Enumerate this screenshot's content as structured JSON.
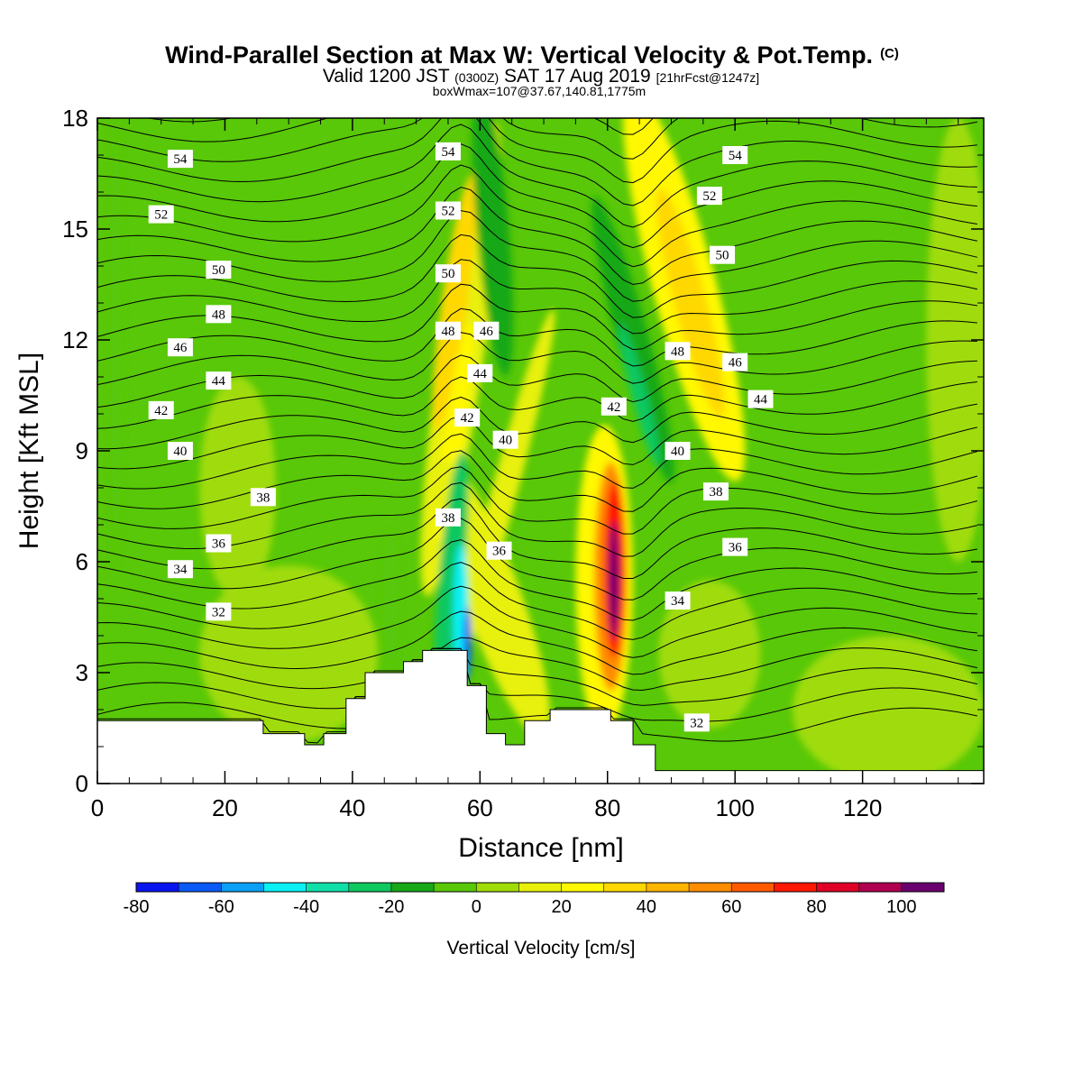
{
  "chart_data": {
    "type": "heatmap",
    "title": "Wind-Parallel Section at Max W: Vertical Velocity & Pot.Temp.",
    "title_mark": "(C)",
    "subtitle_parts": {
      "a": "Valid 1200 JST",
      "b": "(0300Z)",
      "c": "SAT 17 Aug 2019",
      "d": "[21hrFcst@1247z]"
    },
    "subtitle2": "boxWmax=107@37.67,140.81,1775m",
    "xlabel": "Distance [nm]",
    "ylabel": "Height [Kft MSL]",
    "xlim": [
      0,
      139
    ],
    "ylim": [
      0,
      18
    ],
    "xticks": [
      "0",
      "20",
      "40",
      "60",
      "80",
      "100",
      "120"
    ],
    "xtick_values": [
      0,
      20,
      40,
      60,
      80,
      100,
      120
    ],
    "yticks": [
      "0",
      "3",
      "6",
      "9",
      "12",
      "15",
      "18"
    ],
    "ytick_values": [
      0,
      3,
      6,
      9,
      12,
      15,
      18
    ],
    "colorbar": {
      "label": "Vertical Velocity [cm/s]",
      "ticks": [
        "-80",
        "-60",
        "-40",
        "-20",
        "0",
        "20",
        "40",
        "60",
        "80",
        "100"
      ],
      "tick_values": [
        -80,
        -60,
        -40,
        -20,
        0,
        20,
        40,
        60,
        80,
        100
      ],
      "range": [
        -80,
        110
      ],
      "colors": [
        "#0a14f0",
        "#0a5af5",
        "#0aa0f5",
        "#0af0f5",
        "#10e0a8",
        "#10c860",
        "#18a818",
        "#58c808",
        "#a0dc08",
        "#e8f00a",
        "#fff800",
        "#ffd800",
        "#ffb400",
        "#ff8c00",
        "#ff5a00",
        "#ff1800",
        "#e00028",
        "#b00050",
        "#6a006e"
      ]
    },
    "terrain_kft": [
      [
        0,
        1.7
      ],
      [
        26,
        1.7
      ],
      [
        26,
        1.35
      ],
      [
        32.5,
        1.35
      ],
      [
        32.5,
        1.05
      ],
      [
        35.5,
        1.05
      ],
      [
        35.5,
        1.35
      ],
      [
        39,
        1.35
      ],
      [
        39,
        2.3
      ],
      [
        42,
        2.3
      ],
      [
        42,
        3.0
      ],
      [
        48,
        3.0
      ],
      [
        48,
        3.3
      ],
      [
        51,
        3.3
      ],
      [
        51,
        3.6
      ],
      [
        55,
        3.6
      ],
      [
        58,
        3.6
      ],
      [
        58,
        2.65
      ],
      [
        61,
        2.65
      ],
      [
        61,
        1.35
      ],
      [
        64,
        1.35
      ],
      [
        64,
        1.05
      ],
      [
        67,
        1.05
      ],
      [
        67,
        1.7
      ],
      [
        71,
        1.7
      ],
      [
        71,
        2.0
      ],
      [
        77,
        2.0
      ],
      [
        80.5,
        2.0
      ],
      [
        80.5,
        1.7
      ],
      [
        84,
        1.7
      ],
      [
        84,
        1.05
      ],
      [
        87.5,
        1.05
      ],
      [
        87.5,
        0.35
      ],
      [
        139,
        0.35
      ]
    ],
    "theta_levels": [
      "32",
      "34",
      "36",
      "38",
      "40",
      "42",
      "44",
      "46",
      "48",
      "50",
      "52",
      "54"
    ],
    "theta_labels": [
      {
        "text": "54",
        "x": 13,
        "y": 16.9
      },
      {
        "text": "52",
        "x": 10,
        "y": 15.4
      },
      {
        "text": "50",
        "x": 19,
        "y": 13.9
      },
      {
        "text": "48",
        "x": 19,
        "y": 12.7
      },
      {
        "text": "46",
        "x": 13,
        "y": 11.8
      },
      {
        "text": "44",
        "x": 19,
        "y": 10.9
      },
      {
        "text": "42",
        "x": 10,
        "y": 10.1
      },
      {
        "text": "40",
        "x": 13,
        "y": 9.0
      },
      {
        "text": "38",
        "x": 26,
        "y": 7.75
      },
      {
        "text": "36",
        "x": 19,
        "y": 6.5
      },
      {
        "text": "34",
        "x": 13,
        "y": 5.8
      },
      {
        "text": "32",
        "x": 19,
        "y": 4.65
      },
      {
        "text": "54",
        "x": 55,
        "y": 17.1
      },
      {
        "text": "52",
        "x": 55,
        "y": 15.5
      },
      {
        "text": "50",
        "x": 55,
        "y": 13.8
      },
      {
        "text": "48",
        "x": 55,
        "y": 12.25
      },
      {
        "text": "46",
        "x": 61,
        "y": 12.25
      },
      {
        "text": "44",
        "x": 60,
        "y": 11.1
      },
      {
        "text": "42",
        "x": 58,
        "y": 9.9
      },
      {
        "text": "40",
        "x": 64,
        "y": 9.3
      },
      {
        "text": "38",
        "x": 55,
        "y": 7.2
      },
      {
        "text": "36",
        "x": 63,
        "y": 6.3
      },
      {
        "text": "42",
        "x": 81,
        "y": 10.2
      },
      {
        "text": "48",
        "x": 91,
        "y": 11.7
      },
      {
        "text": "46",
        "x": 100,
        "y": 11.4
      },
      {
        "text": "44",
        "x": 104,
        "y": 10.4
      },
      {
        "text": "40",
        "x": 91,
        "y": 9.0
      },
      {
        "text": "38",
        "x": 97,
        "y": 7.9
      },
      {
        "text": "36",
        "x": 100,
        "y": 6.4
      },
      {
        "text": "34",
        "x": 91,
        "y": 4.95
      },
      {
        "text": "32",
        "x": 94,
        "y": 1.65
      },
      {
        "text": "54",
        "x": 100,
        "y": 17.0
      },
      {
        "text": "52",
        "x": 96,
        "y": 15.9
      },
      {
        "text": "50",
        "x": 98,
        "y": 14.3
      }
    ],
    "w_features": [
      {
        "cx": 57,
        "cy": 11.5,
        "rx": 3.5,
        "ry": 6.5,
        "rot": 8,
        "v": 18
      },
      {
        "cx": 56,
        "cy": 13,
        "rx": 2.0,
        "ry": 3.5,
        "rot": 8,
        "v": 32
      },
      {
        "cx": 56,
        "cy": 9.5,
        "rx": 1.6,
        "ry": 3,
        "rot": 8,
        "v": 28
      },
      {
        "cx": 62,
        "cy": 5,
        "rx": 4.5,
        "ry": 4,
        "rot": -20,
        "v": 18
      },
      {
        "cx": 64,
        "cy": 8,
        "rx": 2,
        "ry": 5,
        "rot": 15,
        "v": 15
      },
      {
        "cx": 92,
        "cy": 13.5,
        "rx": 5,
        "ry": 5.5,
        "rot": -15,
        "v": 20
      },
      {
        "cx": 93,
        "cy": 13,
        "rx": 2.5,
        "ry": 3.2,
        "rot": -15,
        "v": 32
      },
      {
        "cx": 79.5,
        "cy": 5.5,
        "rx": 4.5,
        "ry": 4.2,
        "rot": 0,
        "v": 25
      },
      {
        "cx": 80.5,
        "cy": 5.6,
        "rx": 2.6,
        "ry": 3.1,
        "rot": 0,
        "v": 50
      },
      {
        "cx": 81,
        "cy": 5.8,
        "rx": 1.6,
        "ry": 2.4,
        "rot": 0,
        "v": 75
      },
      {
        "cx": 81,
        "cy": 5.5,
        "rx": 0.8,
        "ry": 1.6,
        "rot": 0,
        "v": 105
      },
      {
        "cx": 55.5,
        "cy": 5.5,
        "rx": 2.0,
        "ry": 3.5,
        "rot": 5,
        "v": -30
      },
      {
        "cx": 57,
        "cy": 4.5,
        "rx": 1.2,
        "ry": 2.0,
        "rot": 0,
        "v": -45
      },
      {
        "cx": 58,
        "cy": 3.8,
        "rx": 0.6,
        "ry": 1.0,
        "rot": 0,
        "v": -65
      },
      {
        "cx": 62,
        "cy": 15,
        "rx": 2.5,
        "ry": 4,
        "rot": -5,
        "v": -15
      },
      {
        "cx": 84,
        "cy": 12,
        "rx": 2.5,
        "ry": 4,
        "rot": -15,
        "v": -15
      },
      {
        "cx": 85,
        "cy": 10.5,
        "rx": 1.2,
        "ry": 2,
        "rot": -15,
        "v": -25
      },
      {
        "cx": 3,
        "cy": 12,
        "rx": 0.8,
        "ry": 6,
        "rot": 0,
        "v": -10
      },
      {
        "cx": 46,
        "cy": 5,
        "rx": 1.2,
        "ry": 1.8,
        "rot": 0,
        "v": -10
      },
      {
        "cx": 30,
        "cy": 3.5,
        "rx": 14,
        "ry": 2.4,
        "rot": 0,
        "v": 2
      },
      {
        "cx": 124,
        "cy": 2,
        "rx": 15,
        "ry": 2,
        "rot": 0,
        "v": 3
      },
      {
        "cx": 135,
        "cy": 12,
        "rx": 5,
        "ry": 6,
        "rot": 0,
        "v": 5
      },
      {
        "cx": 22,
        "cy": 8,
        "rx": 6,
        "ry": 3,
        "rot": 0,
        "v": 3
      },
      {
        "cx": 96,
        "cy": 3.5,
        "rx": 8,
        "ry": 2,
        "rot": 0,
        "v": 3
      }
    ]
  }
}
